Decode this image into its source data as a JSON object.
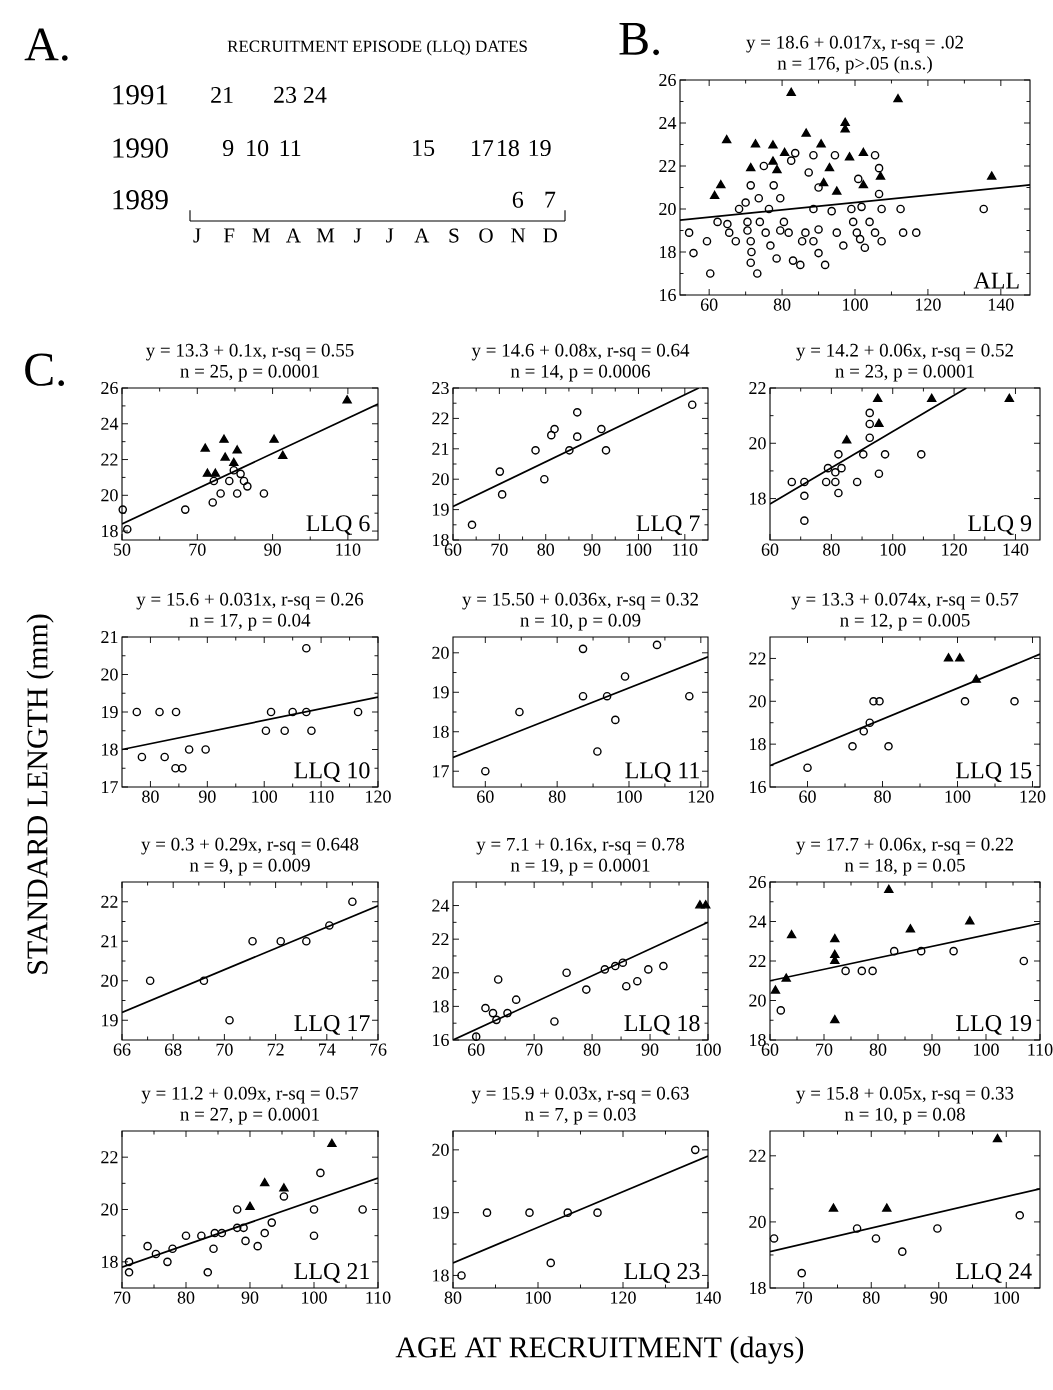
{
  "chart_data": [
    {
      "type": "other",
      "title": "RECRUITMENT EPISODE (LLQ) DATES",
      "categories": [
        "J",
        "F",
        "M",
        "A",
        "M",
        "J",
        "J",
        "A",
        "S",
        "O",
        "N",
        "D"
      ],
      "annotations": [
        "A.",
        "1991",
        "1990",
        "1989",
        "21",
        "23",
        "24",
        "9",
        "10",
        "11",
        "15",
        "17",
        "18",
        "19",
        "6",
        "7"
      ]
    },
    {
      "type": "scatter",
      "title": "y = 18.6 + 0.017x, r-sq = .02",
      "subtitle": "n = 176, p>.05 (n.s.)",
      "xlim": [
        52,
        148
      ],
      "ylim": [
        16,
        26
      ],
      "xticks": [
        60,
        80,
        100,
        120,
        140
      ],
      "yticks": [
        16,
        18,
        20,
        22,
        24,
        26
      ],
      "annotations": [
        "B.",
        "ALL"
      ],
      "series": [
        {
          "marker": "circle",
          "color": "#000000",
          "x": [
            54.5,
            55.7,
            60.3,
            59.4,
            62.3,
            65,
            67.3,
            68.2,
            70,
            70.5,
            70.5,
            71.4,
            71.6,
            71.4,
            73.2,
            71.4,
            73.6,
            73.9,
            75.5,
            76.8,
            78.5,
            79.5,
            75,
            80.5,
            81.8,
            83,
            85,
            83.6,
            82.5,
            87.3,
            88.6,
            90,
            88.6,
            90,
            88.6,
            90,
            91.8,
            94.5,
            93.6,
            95,
            96.8,
            99.5,
            99,
            100.5,
            101.4,
            100.9,
            101.8,
            102.7,
            104,
            105.5,
            106.6,
            106.6,
            107.3,
            107.3,
            105.5,
            112.5,
            113.2,
            116.8,
            135.3,
            86.4,
            85.5,
            79.5,
            76.4,
            77.7,
            65.5
          ],
          "values": [
            18.9,
            17.95,
            17.0,
            18.5,
            19.4,
            19.3,
            18.5,
            20,
            20.3,
            19.4,
            19.0,
            18.5,
            18.0,
            17.5,
            17.0,
            21.1,
            20.5,
            19.4,
            18.9,
            18.3,
            17.7,
            20.5,
            22.0,
            19.4,
            18.9,
            17.6,
            17.4,
            22.6,
            22.25,
            21.7,
            22.5,
            21,
            20,
            19.05,
            18.5,
            17.95,
            17.4,
            22.5,
            19.9,
            18.9,
            18.3,
            19.4,
            20,
            18.9,
            18.6,
            21.4,
            20.1,
            18.2,
            19.4,
            22.5,
            21.9,
            20.7,
            20,
            18.5,
            18.9,
            20,
            18.9,
            18.9,
            20,
            18.9,
            18.5,
            19.0,
            20.0,
            21.1,
            18.9
          ]
        },
        {
          "marker": "triangle",
          "color": "#000000",
          "x": [
            82.5,
            111.8,
            97.3,
            97.3,
            64.8,
            86.6,
            72.7,
            77.5,
            90.7,
            102.3,
            80.7,
            98.5,
            71.4,
            77.5,
            93,
            107,
            102.3,
            63.2,
            61.5,
            137.5,
            78.6,
            95,
            91.4
          ],
          "values": [
            25.4,
            25.1,
            24.0,
            23.7,
            23.2,
            23.5,
            23.0,
            22.95,
            23.0,
            22.6,
            22.6,
            22.4,
            21.9,
            22.2,
            21.9,
            21.5,
            21.1,
            21.1,
            20.6,
            21.5,
            21.8,
            20.8,
            21.2
          ]
        },
        {
          "type": "line",
          "color": "#000000",
          "x": [
            52,
            148
          ],
          "values": [
            19.48,
            21.12
          ]
        }
      ]
    },
    {
      "type": "scatter",
      "title": "y = 13.3 + 0.1x, r-sq = 0.55",
      "subtitle": "n = 25, p = 0.0001",
      "xlim": [
        50,
        118
      ],
      "ylim": [
        17.5,
        26
      ],
      "xticks": [
        50,
        70,
        90,
        110
      ],
      "yticks": [
        18,
        20,
        22,
        24,
        26
      ],
      "annotations": [
        "C.",
        "LLQ 6"
      ],
      "series": [
        {
          "marker": "circle",
          "color": "#000000",
          "x": [
            50.2,
            51.4,
            66.8,
            74.1,
            76.2,
            80.6,
            78.5,
            82.4,
            83.3,
            87.7,
            79.7,
            81.5,
            74.4
          ],
          "values": [
            19.2,
            18.1,
            19.2,
            19.6,
            20.1,
            20.1,
            20.8,
            20.8,
            20.5,
            20.1,
            21.4,
            21.2,
            20.8
          ]
        },
        {
          "marker": "triangle",
          "color": "#000000",
          "x": [
            72.1,
            77.1,
            80.6,
            72.7,
            74.8,
            77.4,
            79.7,
            90.4,
            92.7,
            109.8
          ],
          "values": [
            22.6,
            23.1,
            22.5,
            21.2,
            21.2,
            22.1,
            21.8,
            23.1,
            22.2,
            25.3
          ]
        },
        {
          "type": "line",
          "color": "#000000",
          "x": [
            50,
            118
          ],
          "values": [
            18.4,
            25.1
          ]
        }
      ]
    },
    {
      "type": "scatter",
      "title": "y = 14.6 + 0.08x, r-sq = 0.64",
      "subtitle": "n = 14, p = 0.0006",
      "xlim": [
        60,
        115
      ],
      "ylim": [
        18,
        23
      ],
      "xticks": [
        60,
        70,
        80,
        90,
        100,
        110
      ],
      "yticks": [
        18,
        19,
        20,
        21,
        22,
        23
      ],
      "annotations": [
        "LLQ 7"
      ],
      "series": [
        {
          "marker": "circle",
          "color": "#000000",
          "x": [
            64.1,
            70.6,
            70.1,
            77.8,
            79.7,
            81.2,
            81.9,
            85.1,
            86.8,
            86.8,
            92,
            93,
            111.6
          ],
          "values": [
            18.5,
            19.5,
            20.25,
            20.95,
            20.0,
            21.45,
            21.65,
            20.95,
            21.4,
            22.2,
            21.65,
            20.95,
            22.45
          ]
        },
        {
          "type": "line",
          "color": "#000000",
          "x": [
            60,
            113
          ],
          "values": [
            19.1,
            23.0
          ]
        }
      ]
    },
    {
      "type": "scatter",
      "title": "y = 14.2 + 0.06x, r-sq = 0.52",
      "subtitle": "n = 23, p = 0.0001",
      "xlim": [
        60,
        148
      ],
      "ylim": [
        16.5,
        22
      ],
      "xticks": [
        60,
        80,
        100,
        120,
        140
      ],
      "yticks": [
        18,
        20,
        22
      ],
      "annotations": [
        "LLQ 9"
      ],
      "series": [
        {
          "marker": "circle",
          "color": "#000000",
          "x": [
            67.1,
            71.2,
            71.2,
            71.2,
            78.3,
            78.9,
            81.3,
            81.3,
            82.3,
            82.3,
            83.3,
            88.4,
            90.4,
            92.5,
            92.5,
            92.5,
            95.5,
            97.5,
            109.3
          ],
          "values": [
            18.6,
            18.6,
            18.1,
            17.2,
            18.6,
            19.1,
            18.95,
            18.6,
            19.6,
            18.2,
            19.1,
            18.6,
            19.6,
            20.2,
            20.7,
            21.1,
            18.9,
            19.6,
            19.6
          ]
        },
        {
          "marker": "triangle",
          "color": "#000000",
          "x": [
            85,
            95.1,
            95.5,
            112.7,
            138
          ],
          "values": [
            20.1,
            21.6,
            20.7,
            21.6,
            21.6
          ]
        },
        {
          "type": "line",
          "color": "#000000",
          "x": [
            60,
            124
          ],
          "values": [
            17.8,
            22.0
          ]
        }
      ]
    },
    {
      "type": "scatter",
      "title": "y = 15.6 + 0.031x, r-sq = 0.26",
      "subtitle": "n = 17, p = 0.04",
      "ylabel": "STANDARD LENGTH (mm)",
      "xlim": [
        75,
        120
      ],
      "ylim": [
        17,
        21
      ],
      "xticks": [
        80,
        90,
        100,
        110,
        120
      ],
      "yticks": [
        17,
        18,
        19,
        20,
        21
      ],
      "annotations": [
        "LLQ 10"
      ],
      "series": [
        {
          "marker": "circle",
          "color": "#000000",
          "x": [
            77.6,
            78.5,
            81.6,
            82.5,
            84.5,
            84.4,
            85.6,
            86.8,
            89.7,
            100.3,
            101.2,
            103.6,
            105,
            107.4,
            107.4,
            108.3,
            116.5
          ],
          "values": [
            19.0,
            17.8,
            19.0,
            17.8,
            19.0,
            17.5,
            17.5,
            18.0,
            18.0,
            18.5,
            19.0,
            18.5,
            19.0,
            19.0,
            20.7,
            18.5,
            19.0
          ]
        },
        {
          "type": "line",
          "color": "#000000",
          "x": [
            75,
            120
          ],
          "values": [
            18.0,
            19.4
          ]
        }
      ]
    },
    {
      "type": "scatter",
      "title": "y = 15.50 + 0.036x, r-sq = 0.32",
      "subtitle": "n = 10, p = 0.09",
      "xlim": [
        51,
        122
      ],
      "ylim": [
        16.6,
        20.4
      ],
      "xticks": [
        60,
        80,
        100,
        120
      ],
      "yticks": [
        17,
        18,
        19,
        20
      ],
      "annotations": [
        "LLQ 11"
      ],
      "series": [
        {
          "marker": "circle",
          "color": "#000000",
          "x": [
            60,
            69.5,
            87.2,
            87.2,
            91.2,
            93.9,
            96.2,
            98.9,
            107.8,
            116.8
          ],
          "values": [
            17.0,
            18.5,
            20.1,
            18.9,
            17.5,
            18.9,
            18.3,
            19.4,
            20.2,
            18.9
          ]
        },
        {
          "type": "line",
          "color": "#000000",
          "x": [
            51,
            122
          ],
          "values": [
            17.35,
            19.9
          ]
        }
      ]
    },
    {
      "type": "scatter",
      "title": "y = 13.3 + 0.074x, r-sq = 0.57",
      "subtitle": "n = 12, p = 0.005",
      "xlim": [
        50,
        122
      ],
      "ylim": [
        16,
        23
      ],
      "xticks": [
        60,
        80,
        100,
        120
      ],
      "yticks": [
        16,
        18,
        20,
        22
      ],
      "annotations": [
        "LLQ 15"
      ],
      "series": [
        {
          "marker": "circle",
          "color": "#000000",
          "x": [
            60,
            72,
            75,
            76.6,
            77.6,
            79.2,
            81.6,
            102,
            115.2
          ],
          "values": [
            16.9,
            17.9,
            18.6,
            19.0,
            20.0,
            20.0,
            17.9,
            20.0,
            20.0
          ]
        },
        {
          "marker": "triangle",
          "color": "#000000",
          "x": [
            97.6,
            100.6,
            105
          ],
          "values": [
            22.0,
            22.0,
            21.0
          ]
        },
        {
          "type": "line",
          "color": "#000000",
          "x": [
            50,
            122
          ],
          "values": [
            17.0,
            22.2
          ]
        }
      ]
    },
    {
      "type": "scatter",
      "title": "y = 0.3 + 0.29x, r-sq = 0.648",
      "subtitle": "n = 9, p = 0.009",
      "xlim": [
        66,
        76
      ],
      "ylim": [
        18.5,
        22.5
      ],
      "xticks": [
        66,
        68,
        70,
        72,
        74,
        76
      ],
      "yticks": [
        19,
        20,
        21,
        22
      ],
      "annotations": [
        "LLQ 17"
      ],
      "series": [
        {
          "marker": "circle",
          "color": "#000000",
          "x": [
            67.1,
            69.2,
            70.2,
            71.1,
            72.2,
            73.2,
            74.1,
            75
          ],
          "values": [
            20.0,
            20.0,
            19.0,
            21.0,
            21.0,
            21.0,
            21.4,
            22.0
          ]
        },
        {
          "type": "line",
          "color": "#000000",
          "x": [
            66,
            76
          ],
          "values": [
            19.2,
            21.9
          ]
        }
      ]
    },
    {
      "type": "scatter",
      "title": "y = 7.1 + 0.16x, r-sq = 0.78",
      "subtitle": "n = 19, p = 0.0001",
      "xlim": [
        56,
        100
      ],
      "ylim": [
        16,
        25.4
      ],
      "xticks": [
        60,
        70,
        80,
        90,
        100
      ],
      "yticks": [
        16,
        18,
        20,
        22,
        24
      ],
      "annotations": [
        "LLQ 18"
      ],
      "series": [
        {
          "marker": "circle",
          "color": "#000000",
          "x": [
            60,
            61.6,
            62.9,
            63.5,
            63.8,
            65.4,
            66.9,
            73.5,
            75.6,
            79,
            82.2,
            84,
            85.3,
            85.9,
            87.8,
            89.7,
            92.3
          ],
          "values": [
            16.2,
            17.9,
            17.6,
            17.2,
            19.6,
            17.6,
            18.4,
            17.1,
            20.0,
            19.0,
            20.2,
            20.4,
            20.6,
            19.2,
            19.5,
            20.2,
            20.4
          ]
        },
        {
          "marker": "triangle",
          "color": "#000000",
          "x": [
            98.6,
            99.6
          ],
          "values": [
            24.0,
            24.0
          ]
        },
        {
          "type": "line",
          "color": "#000000",
          "x": [
            56,
            100
          ],
          "values": [
            16.0,
            23.0
          ]
        }
      ]
    },
    {
      "type": "scatter",
      "title": "y = 17.7 + 0.06x, r-sq = 0.22",
      "subtitle": "n = 18, p = 0.05",
      "xlim": [
        60,
        110
      ],
      "ylim": [
        18,
        26
      ],
      "xticks": [
        60,
        70,
        80,
        90,
        100,
        110
      ],
      "yticks": [
        18,
        20,
        22,
        24,
        26
      ],
      "annotations": [
        "LLQ 19"
      ],
      "series": [
        {
          "marker": "circle",
          "color": "#000000",
          "x": [
            62,
            74,
            77,
            79,
            83,
            88,
            94,
            107
          ],
          "values": [
            19.5,
            21.5,
            21.5,
            21.5,
            22.5,
            22.5,
            22.5,
            22.0
          ]
        },
        {
          "marker": "triangle",
          "color": "#000000",
          "x": [
            61,
            63,
            64,
            72,
            72,
            72,
            72,
            82,
            86,
            97
          ],
          "values": [
            20.5,
            21.1,
            23.3,
            23.1,
            22.3,
            22.0,
            19.0,
            25.6,
            23.6,
            24.0
          ]
        },
        {
          "type": "line",
          "color": "#000000",
          "x": [
            60,
            110
          ],
          "values": [
            21.0,
            23.9
          ]
        }
      ]
    },
    {
      "type": "scatter",
      "title": "y = 11.2 + 0.09x, r-sq = 0.57",
      "subtitle": "n = 27, p = 0.0001",
      "xlim": [
        70,
        110
      ],
      "ylim": [
        17,
        23
      ],
      "xticks": [
        70,
        80,
        90,
        100,
        110
      ],
      "yticks": [
        18,
        20,
        22
      ],
      "annotations": [
        "LLQ 21"
      ],
      "series": [
        {
          "marker": "circle",
          "color": "#000000",
          "x": [
            71.1,
            71.1,
            74,
            75.3,
            77.1,
            77.9,
            80,
            82.4,
            83.4,
            84.3,
            84.5,
            85.6,
            88,
            88,
            89,
            89.3,
            91.2,
            92.3,
            93.4,
            95.3,
            100,
            100,
            101,
            107.6
          ],
          "values": [
            18.0,
            17.6,
            18.6,
            18.3,
            18.0,
            18.5,
            19.0,
            19.0,
            17.6,
            18.5,
            19.1,
            19.1,
            19.3,
            20.0,
            19.3,
            18.8,
            18.6,
            19.1,
            19.5,
            20.5,
            20.0,
            19.0,
            21.4,
            20.0
          ]
        },
        {
          "marker": "triangle",
          "color": "#000000",
          "x": [
            90,
            92.3,
            95.3,
            102.8
          ],
          "values": [
            20.1,
            21.0,
            20.8,
            22.5
          ]
        },
        {
          "type": "line",
          "color": "#000000",
          "x": [
            70,
            110
          ],
          "values": [
            17.8,
            21.2
          ]
        }
      ]
    },
    {
      "type": "scatter",
      "title": "y = 15.9 + 0.03x, r-sq = 0.63",
      "subtitle": "n = 7, p = 0.03",
      "xlabel": "AGE AT RECRUITMENT (days)",
      "xlim": [
        80,
        140
      ],
      "ylim": [
        17.8,
        20.3
      ],
      "xticks": [
        80,
        100,
        120,
        140
      ],
      "yticks": [
        18,
        19,
        20
      ],
      "annotations": [
        "LLQ 23"
      ],
      "series": [
        {
          "marker": "circle",
          "color": "#000000",
          "x": [
            82,
            88,
            98,
            103,
            107,
            114,
            137
          ],
          "values": [
            18.0,
            19.0,
            19.0,
            18.2,
            19.0,
            19.0,
            20.0
          ]
        },
        {
          "type": "line",
          "color": "#000000",
          "x": [
            80,
            140
          ],
          "values": [
            18.2,
            19.9
          ]
        }
      ]
    },
    {
      "type": "scatter",
      "title": "y = 15.8 + 0.05x, r-sq = 0.33",
      "subtitle": "n = 10, p = 0.08",
      "xlim": [
        65,
        105
      ],
      "ylim": [
        18,
        22.75
      ],
      "xticks": [
        70,
        80,
        90,
        100
      ],
      "yticks": [
        18,
        20,
        22
      ],
      "annotations": [
        "LLQ 24"
      ],
      "series": [
        {
          "marker": "circle",
          "color": "#000000",
          "x": [
            65.6,
            69.7,
            77.9,
            80.7,
            84.6,
            89.8,
            102
          ],
          "values": [
            19.5,
            18.45,
            19.8,
            19.5,
            19.1,
            19.8,
            20.2
          ]
        },
        {
          "marker": "triangle",
          "color": "#000000",
          "x": [
            74.4,
            82.3,
            98.7
          ],
          "values": [
            20.4,
            20.4,
            22.5
          ]
        },
        {
          "type": "line",
          "color": "#000000",
          "x": [
            65,
            105
          ],
          "values": [
            19.1,
            21.0
          ]
        }
      ]
    }
  ]
}
